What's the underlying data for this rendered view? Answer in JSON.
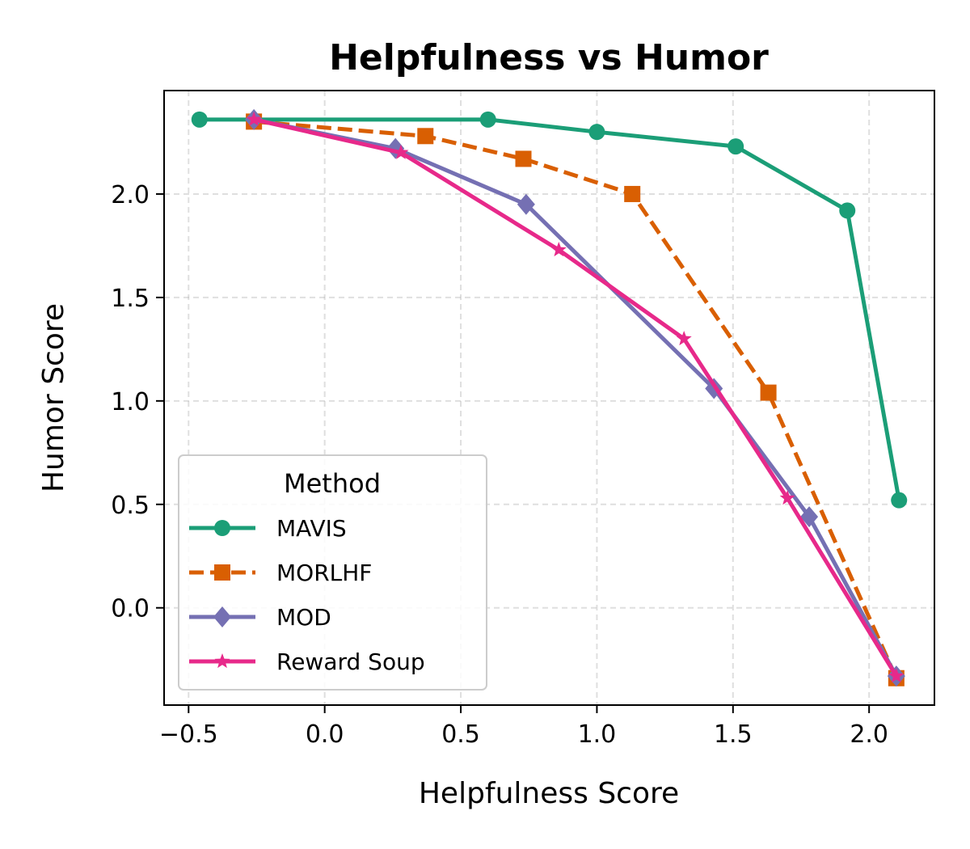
{
  "chart_data": {
    "type": "line",
    "title": "Helpfulness vs Humor",
    "xlabel": "Helpfulness Score",
    "ylabel": "Humor Score",
    "xlim": [
      -0.59,
      2.24
    ],
    "ylim": [
      -0.47,
      2.5
    ],
    "xticks": [
      -0.5,
      0.0,
      0.5,
      1.0,
      1.5,
      2.0
    ],
    "yticks": [
      0.0,
      0.5,
      1.0,
      1.5,
      2.0
    ],
    "xtick_labels": [
      "−0.5",
      "0.0",
      "0.5",
      "1.0",
      "1.5",
      "2.0"
    ],
    "ytick_labels": [
      "0.0",
      "0.5",
      "1.0",
      "1.5",
      "2.0"
    ],
    "grid": true,
    "legend": {
      "title": "Method",
      "position": "lower-left"
    },
    "series": [
      {
        "name": "MAVIS",
        "color": "#1b9e77",
        "dash": "solid",
        "marker": "circle",
        "x": [
          -0.46,
          0.6,
          1.0,
          1.51,
          1.92,
          2.11
        ],
        "y": [
          2.36,
          2.36,
          2.3,
          2.23,
          1.92,
          0.52
        ]
      },
      {
        "name": "MORLHF",
        "color": "#d95f02",
        "dash": "dashed",
        "marker": "square",
        "x": [
          -0.26,
          0.37,
          0.73,
          1.13,
          1.63,
          2.1
        ],
        "y": [
          2.35,
          2.28,
          2.17,
          2.0,
          1.04,
          -0.34
        ]
      },
      {
        "name": "MOD",
        "color": "#7570b3",
        "dash": "solid",
        "marker": "diamond",
        "x": [
          -0.26,
          0.26,
          0.74,
          1.43,
          1.78,
          2.1
        ],
        "y": [
          2.36,
          2.22,
          1.95,
          1.06,
          0.44,
          -0.33
        ]
      },
      {
        "name": "Reward Soup",
        "color": "#e7298a",
        "dash": "solid",
        "marker": "star",
        "x": [
          -0.26,
          0.28,
          0.86,
          1.32,
          1.7,
          2.1
        ],
        "y": [
          2.36,
          2.2,
          1.73,
          1.3,
          0.53,
          -0.33
        ]
      }
    ]
  }
}
